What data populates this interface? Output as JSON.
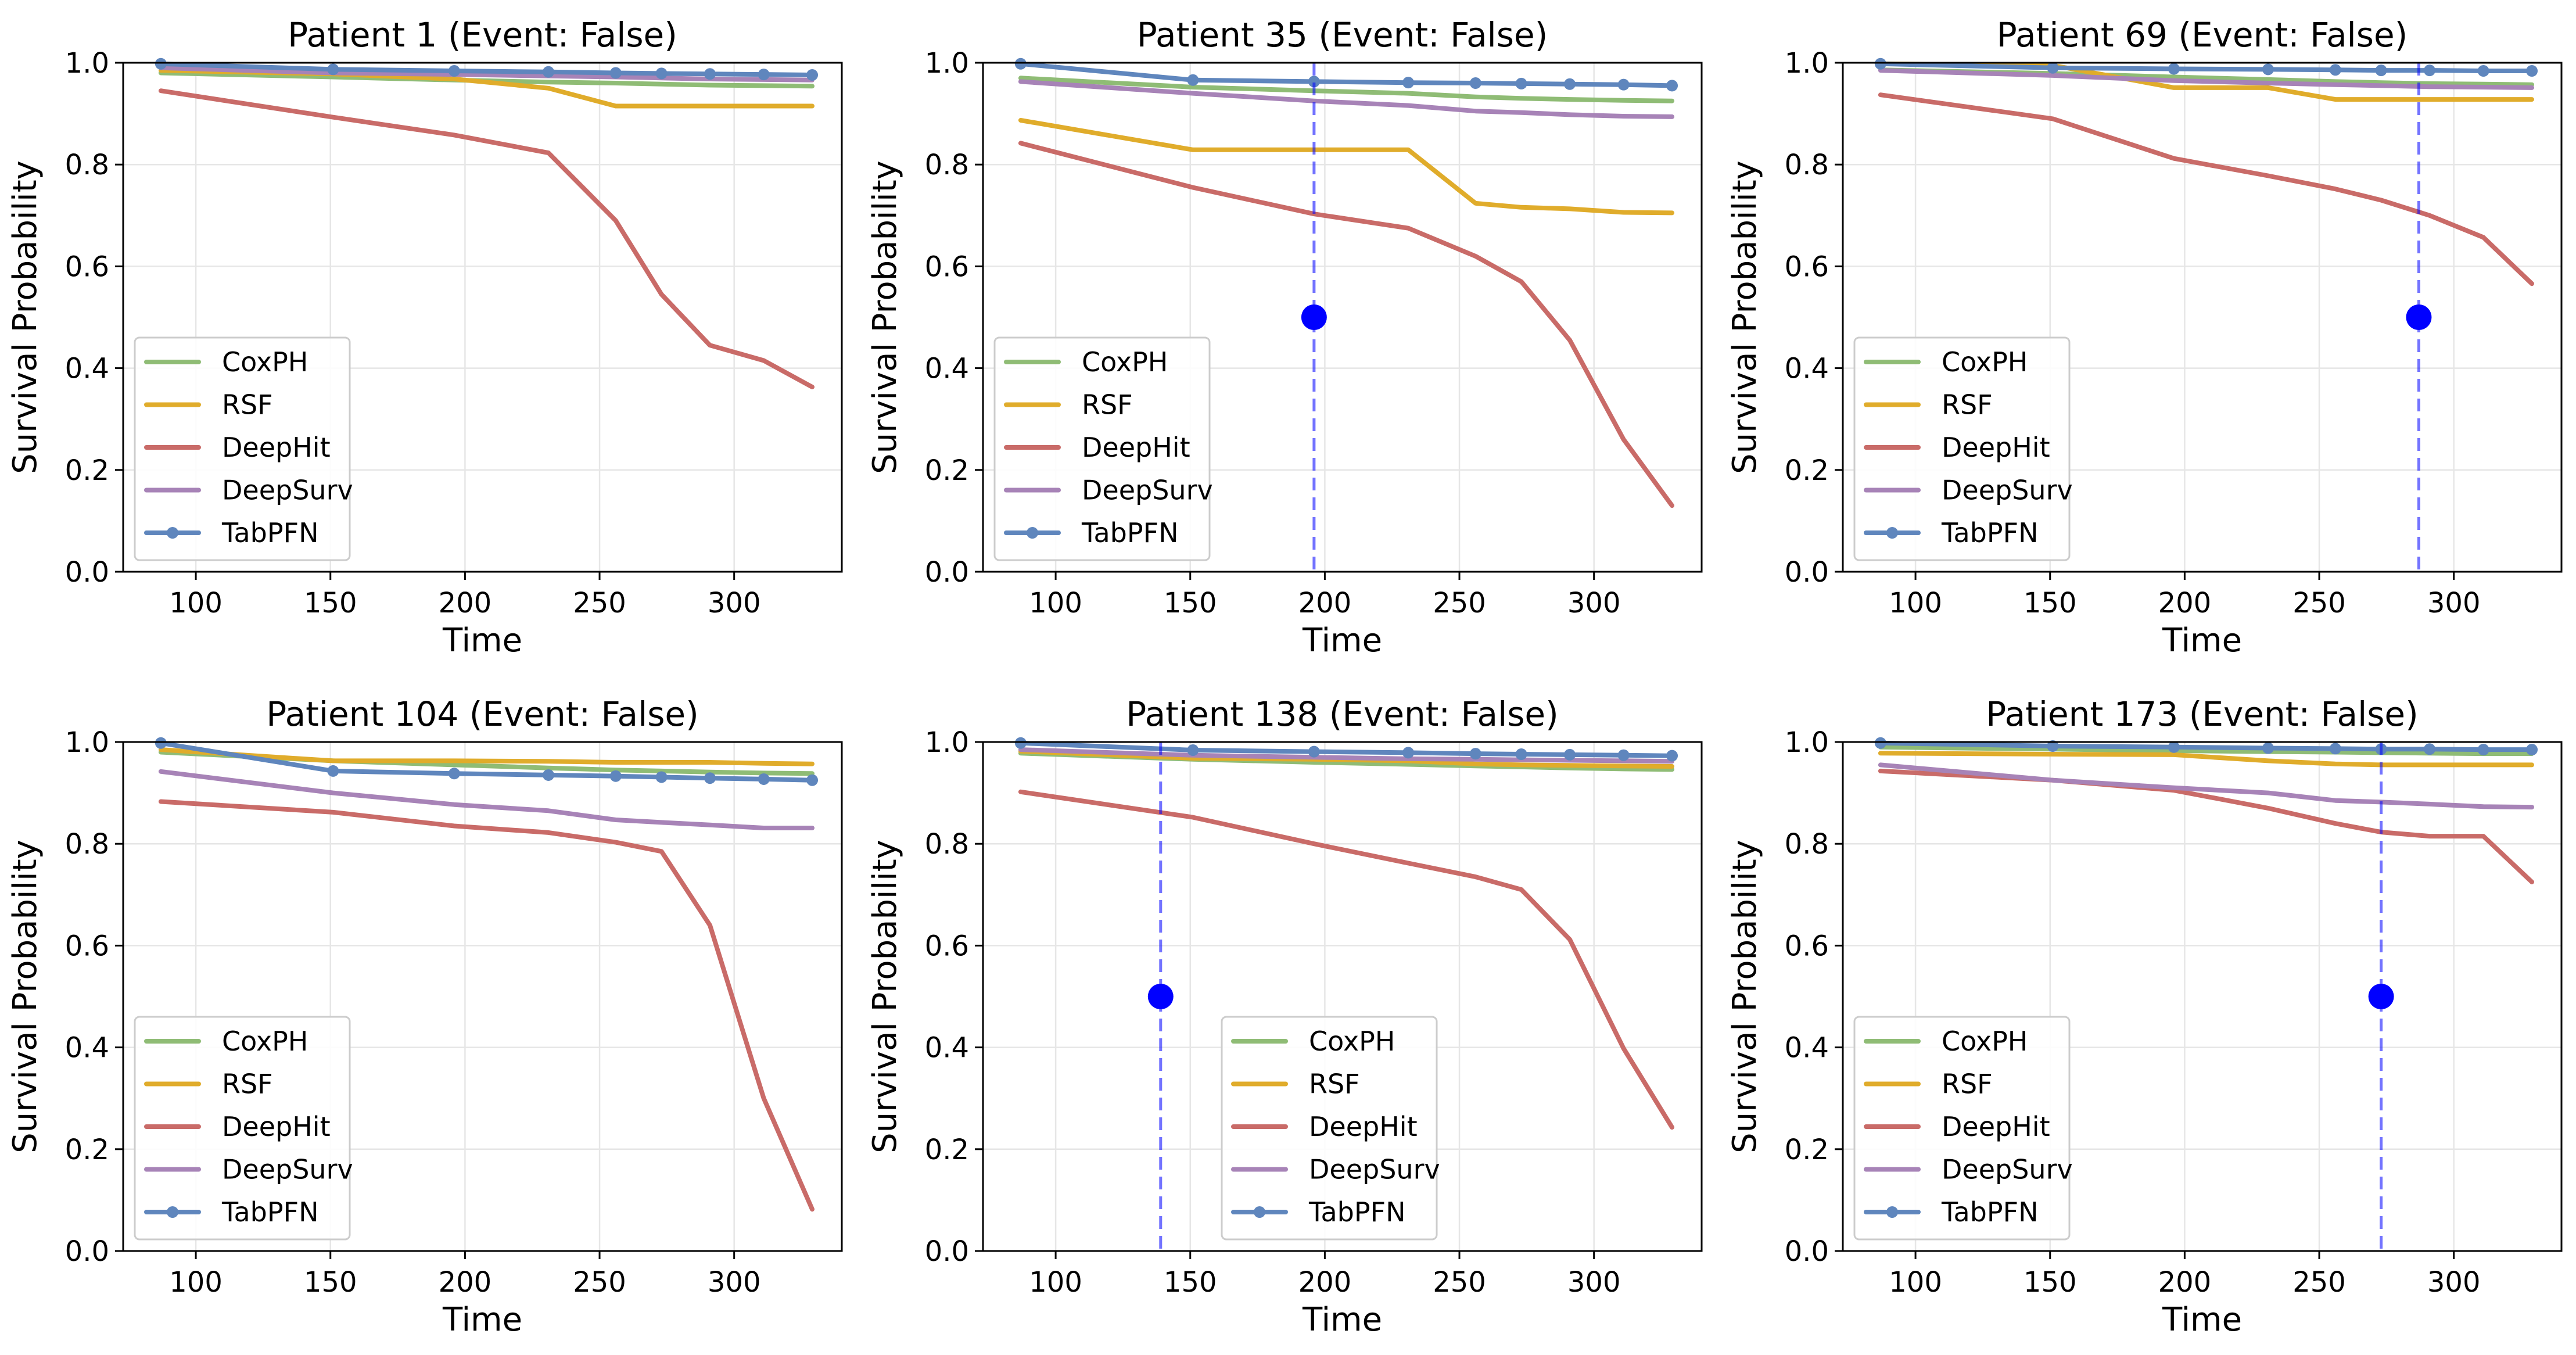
{
  "figure": {
    "background": "#ffffff"
  },
  "chart_data": [
    {
      "type": "line",
      "title": "Patient 1 (Event: False)",
      "xlabel": "Time",
      "ylabel": "Survival Probability",
      "xlim": [
        73,
        340
      ],
      "ylim": [
        0,
        1.0
      ],
      "xticks": [
        100,
        150,
        200,
        250,
        300
      ],
      "yticks": [
        0.0,
        0.2,
        0.4,
        0.6,
        0.8,
        1.0
      ],
      "grid": true,
      "legend": "lower-left",
      "x": [
        87,
        151,
        196,
        231,
        256,
        273,
        291,
        311,
        329
      ],
      "series": [
        {
          "name": "CoxPH",
          "color": "#8fbc75",
          "markers": false,
          "values": [
            0.98,
            0.972,
            0.966,
            0.962,
            0.96,
            0.958,
            0.956,
            0.955,
            0.954
          ]
        },
        {
          "name": "RSF",
          "color": "#e0ac2b",
          "markers": false,
          "values": [
            0.985,
            0.978,
            0.968,
            0.95,
            0.915,
            0.915,
            0.915,
            0.915,
            0.915
          ]
        },
        {
          "name": "DeepHit",
          "color": "#c96b68",
          "markers": false,
          "values": [
            0.945,
            0.893,
            0.858,
            0.823,
            0.69,
            0.545,
            0.445,
            0.415,
            0.363
          ]
        },
        {
          "name": "DeepSurv",
          "color": "#a783b7",
          "markers": false,
          "values": [
            0.99,
            0.98,
            0.977,
            0.974,
            0.972,
            0.97,
            0.968,
            0.967,
            0.966
          ]
        },
        {
          "name": "TabPFN",
          "color": "#5f86bd",
          "markers": true,
          "values": [
            0.998,
            0.987,
            0.984,
            0.982,
            0.98,
            0.979,
            0.978,
            0.977,
            0.976
          ]
        }
      ],
      "event_marker": null
    },
    {
      "type": "line",
      "title": "Patient 35 (Event: False)",
      "xlabel": "Time",
      "ylabel": "Survival Probability",
      "xlim": [
        73,
        340
      ],
      "ylim": [
        0,
        1.0
      ],
      "xticks": [
        100,
        150,
        200,
        250,
        300
      ],
      "yticks": [
        0.0,
        0.2,
        0.4,
        0.6,
        0.8,
        1.0
      ],
      "grid": true,
      "legend": "lower-left",
      "x": [
        87,
        151,
        196,
        231,
        256,
        273,
        291,
        311,
        329
      ],
      "series": [
        {
          "name": "CoxPH",
          "color": "#8fbc75",
          "markers": false,
          "values": [
            0.97,
            0.952,
            0.945,
            0.94,
            0.933,
            0.93,
            0.928,
            0.926,
            0.925
          ]
        },
        {
          "name": "RSF",
          "color": "#e0ac2b",
          "markers": false,
          "values": [
            0.887,
            0.829,
            0.829,
            0.829,
            0.724,
            0.716,
            0.713,
            0.706,
            0.705
          ]
        },
        {
          "name": "DeepHit",
          "color": "#c96b68",
          "markers": false,
          "values": [
            0.842,
            0.755,
            0.703,
            0.675,
            0.62,
            0.57,
            0.455,
            0.26,
            0.13
          ]
        },
        {
          "name": "DeepSurv",
          "color": "#a783b7",
          "markers": false,
          "values": [
            0.963,
            0.94,
            0.925,
            0.916,
            0.905,
            0.902,
            0.898,
            0.895,
            0.894
          ]
        },
        {
          "name": "TabPFN",
          "color": "#5f86bd",
          "markers": true,
          "values": [
            0.998,
            0.966,
            0.963,
            0.961,
            0.96,
            0.959,
            0.958,
            0.957,
            0.955
          ]
        }
      ],
      "event_marker": {
        "x": 196,
        "y": 0.5,
        "color": "#0000ff"
      }
    },
    {
      "type": "line",
      "title": "Patient 69 (Event: False)",
      "xlabel": "Time",
      "ylabel": "Survival Probability",
      "xlim": [
        73,
        340
      ],
      "ylim": [
        0,
        1.0
      ],
      "xticks": [
        100,
        150,
        200,
        250,
        300
      ],
      "yticks": [
        0.0,
        0.2,
        0.4,
        0.6,
        0.8,
        1.0
      ],
      "grid": true,
      "legend": "lower-left",
      "x": [
        87,
        151,
        196,
        231,
        256,
        273,
        291,
        311,
        329
      ],
      "series": [
        {
          "name": "CoxPH",
          "color": "#8fbc75",
          "markers": false,
          "values": [
            0.986,
            0.979,
            0.972,
            0.967,
            0.963,
            0.961,
            0.959,
            0.958,
            0.957
          ]
        },
        {
          "name": "RSF",
          "color": "#e0ac2b",
          "markers": false,
          "values": [
            0.998,
            0.995,
            0.951,
            0.951,
            0.928,
            0.928,
            0.928,
            0.928,
            0.928
          ]
        },
        {
          "name": "DeepHit",
          "color": "#c96b68",
          "markers": false,
          "values": [
            0.937,
            0.89,
            0.812,
            0.778,
            0.752,
            0.73,
            0.7,
            0.657,
            0.566
          ]
        },
        {
          "name": "DeepSurv",
          "color": "#a783b7",
          "markers": false,
          "values": [
            0.985,
            0.975,
            0.965,
            0.96,
            0.957,
            0.955,
            0.953,
            0.952,
            0.951
          ]
        },
        {
          "name": "TabPFN",
          "color": "#5f86bd",
          "markers": true,
          "values": [
            0.998,
            0.99,
            0.988,
            0.987,
            0.986,
            0.985,
            0.985,
            0.984,
            0.984
          ]
        }
      ],
      "event_marker": {
        "x": 287,
        "y": 0.5,
        "color": "#0000ff"
      }
    },
    {
      "type": "line",
      "title": "Patient 104 (Event: False)",
      "xlabel": "Time",
      "ylabel": "Survival Probability",
      "xlim": [
        73,
        340
      ],
      "ylim": [
        0,
        1.0
      ],
      "xticks": [
        100,
        150,
        200,
        250,
        300
      ],
      "yticks": [
        0.0,
        0.2,
        0.4,
        0.6,
        0.8,
        1.0
      ],
      "grid": true,
      "legend": "lower-left",
      "x": [
        87,
        151,
        196,
        231,
        256,
        273,
        291,
        311,
        329
      ],
      "series": [
        {
          "name": "CoxPH",
          "color": "#8fbc75",
          "markers": false,
          "values": [
            0.98,
            0.963,
            0.955,
            0.949,
            0.945,
            0.943,
            0.941,
            0.939,
            0.938
          ]
        },
        {
          "name": "RSF",
          "color": "#e0ac2b",
          "markers": false,
          "values": [
            0.985,
            0.963,
            0.963,
            0.962,
            0.96,
            0.96,
            0.96,
            0.958,
            0.957
          ]
        },
        {
          "name": "DeepHit",
          "color": "#c96b68",
          "markers": false,
          "values": [
            0.883,
            0.862,
            0.835,
            0.822,
            0.803,
            0.785,
            0.64,
            0.3,
            0.082
          ]
        },
        {
          "name": "DeepSurv",
          "color": "#a783b7",
          "markers": false,
          "values": [
            0.942,
            0.9,
            0.877,
            0.865,
            0.847,
            0.842,
            0.837,
            0.831,
            0.831
          ]
        },
        {
          "name": "TabPFN",
          "color": "#5f86bd",
          "markers": true,
          "values": [
            0.998,
            0.943,
            0.938,
            0.935,
            0.933,
            0.931,
            0.929,
            0.927,
            0.925
          ]
        }
      ],
      "event_marker": null
    },
    {
      "type": "line",
      "title": "Patient 138 (Event: False)",
      "xlabel": "Time",
      "ylabel": "Survival Probability",
      "xlim": [
        73,
        340
      ],
      "ylim": [
        0,
        1.0
      ],
      "xticks": [
        100,
        150,
        200,
        250,
        300
      ],
      "yticks": [
        0.0,
        0.2,
        0.4,
        0.6,
        0.8,
        1.0
      ],
      "grid": true,
      "legend": "lower-center",
      "x": [
        87,
        151,
        196,
        231,
        256,
        273,
        291,
        311,
        329
      ],
      "series": [
        {
          "name": "CoxPH",
          "color": "#8fbc75",
          "markers": false,
          "values": [
            0.978,
            0.966,
            0.96,
            0.956,
            0.953,
            0.951,
            0.949,
            0.947,
            0.946
          ]
        },
        {
          "name": "RSF",
          "color": "#e0ac2b",
          "markers": false,
          "values": [
            0.982,
            0.968,
            0.966,
            0.963,
            0.957,
            0.955,
            0.954,
            0.953,
            0.952
          ]
        },
        {
          "name": "DeepHit",
          "color": "#c96b68",
          "markers": false,
          "values": [
            0.902,
            0.852,
            0.8,
            0.762,
            0.735,
            0.71,
            0.612,
            0.398,
            0.243
          ]
        },
        {
          "name": "DeepSurv",
          "color": "#a783b7",
          "markers": false,
          "values": [
            0.985,
            0.974,
            0.97,
            0.967,
            0.966,
            0.965,
            0.964,
            0.963,
            0.962
          ]
        },
        {
          "name": "TabPFN",
          "color": "#5f86bd",
          "markers": true,
          "values": [
            0.998,
            0.984,
            0.981,
            0.979,
            0.977,
            0.976,
            0.975,
            0.974,
            0.973
          ]
        }
      ],
      "event_marker": {
        "x": 139,
        "y": 0.5,
        "color": "#0000ff"
      }
    },
    {
      "type": "line",
      "title": "Patient 173 (Event: False)",
      "xlabel": "Time",
      "ylabel": "Survival Probability",
      "xlim": [
        73,
        340
      ],
      "ylim": [
        0,
        1.0
      ],
      "xticks": [
        100,
        150,
        200,
        250,
        300
      ],
      "yticks": [
        0.0,
        0.2,
        0.4,
        0.6,
        0.8,
        1.0
      ],
      "grid": true,
      "legend": "lower-left",
      "x": [
        87,
        151,
        196,
        231,
        256,
        273,
        291,
        311,
        329
      ],
      "series": [
        {
          "name": "CoxPH",
          "color": "#8fbc75",
          "markers": false,
          "values": [
            0.99,
            0.986,
            0.983,
            0.981,
            0.98,
            0.979,
            0.978,
            0.977,
            0.977
          ]
        },
        {
          "name": "RSF",
          "color": "#e0ac2b",
          "markers": false,
          "values": [
            0.978,
            0.976,
            0.975,
            0.963,
            0.957,
            0.955,
            0.955,
            0.955,
            0.955
          ]
        },
        {
          "name": "DeepHit",
          "color": "#c96b68",
          "markers": false,
          "values": [
            0.943,
            0.925,
            0.905,
            0.87,
            0.84,
            0.823,
            0.815,
            0.815,
            0.725
          ]
        },
        {
          "name": "DeepSurv",
          "color": "#a783b7",
          "markers": false,
          "values": [
            0.955,
            0.925,
            0.91,
            0.9,
            0.885,
            0.882,
            0.878,
            0.873,
            0.872
          ]
        },
        {
          "name": "TabPFN",
          "color": "#5f86bd",
          "markers": true,
          "values": [
            0.998,
            0.992,
            0.99,
            0.988,
            0.987,
            0.986,
            0.986,
            0.985,
            0.985
          ]
        }
      ],
      "event_marker": {
        "x": 273,
        "y": 0.5,
        "color": "#0000ff"
      }
    }
  ]
}
